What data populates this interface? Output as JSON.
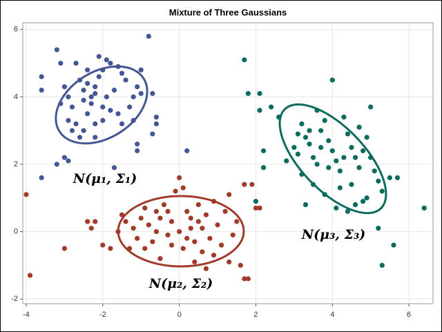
{
  "chart_data": {
    "type": "scatter",
    "title": "Mixture of Three Gaussians",
    "annotations": [
      "N(μ₁, Σ₁)",
      "N(μ₂, Σ₂)",
      "N(μ₃, Σ₃)"
    ],
    "xlim": [
      -4.09,
      6.63
    ],
    "ylim": [
      -2.14,
      6.2
    ],
    "xticks": [
      -4,
      -2,
      0,
      2,
      4,
      6
    ],
    "yticks": [
      -2,
      0,
      2,
      4,
      6
    ],
    "grid": true,
    "series": [
      {
        "color": "#445694",
        "x": [
          -3.6,
          -3.6,
          -3.6,
          -3.2,
          -3.1,
          -3.0,
          -2.9,
          -2.8,
          -2.9,
          -3.0,
          -3.2,
          -2.9,
          -2.6,
          -2.7,
          -2.5,
          -2.4,
          -2.3,
          -2.2,
          -2.1,
          -2.0,
          -2.1,
          -1.9,
          -1.8,
          -1.6,
          -1.5,
          -1.4,
          -1.7,
          -1.9,
          -2.0,
          -2.3,
          -2.5,
          -2.6,
          -2.4,
          -2.7,
          -2.5,
          -1.8,
          -1.6,
          -1.5,
          -1.3,
          -1.2,
          -1.1,
          -1.0,
          -0.7,
          -0.6,
          -0.6,
          -0.7,
          -1.1,
          -1.1,
          -0.8,
          -1.0,
          -2.2,
          -2.0,
          -1.7,
          -2.4,
          -2.2,
          -3.1,
          -2.8,
          -2.2,
          -1.2,
          0.2
        ],
        "values": [
          4.6,
          4.2,
          1.6,
          5.4,
          5.0,
          4.3,
          4.0,
          3.7,
          3.3,
          2.2,
          2.0,
          2.1,
          2.8,
          3.2,
          3.0,
          3.5,
          4.0,
          4.3,
          4.6,
          4.8,
          5.2,
          5.1,
          5.0,
          4.9,
          4.7,
          4.5,
          4.2,
          4.0,
          3.7,
          3.8,
          4.2,
          4.5,
          4.8,
          5.0,
          3.9,
          3.6,
          3.5,
          3.2,
          3.7,
          4.0,
          4.3,
          4.1,
          4.1,
          3.4,
          3.2,
          2.9,
          2.6,
          2.4,
          5.8,
          4.8,
          2.8,
          3.3,
          1.9,
          4.4,
          4.1,
          3.8,
          3.0,
          3.2,
          3.3,
          2.4
        ]
      },
      {
        "color": "#a23a2a",
        "x": [
          -4.0,
          -3.9,
          -3.0,
          -2.4,
          -2.2,
          -2.3,
          -2.0,
          -1.8,
          -1.6,
          -1.5,
          -1.4,
          -1.2,
          -1.1,
          -1.0,
          -0.9,
          -0.8,
          -0.7,
          -0.6,
          -0.5,
          -0.4,
          -0.3,
          -0.2,
          -0.1,
          0.0,
          0.1,
          0.2,
          0.3,
          0.4,
          0.5,
          0.6,
          0.7,
          0.8,
          0.9,
          1.0,
          1.1,
          1.2,
          1.3,
          1.4,
          1.5,
          1.6,
          1.7,
          1.8,
          1.7,
          1.9,
          2.1,
          2.0,
          -0.5,
          0.1,
          0.4,
          0.7,
          -0.2,
          0.2,
          -1.3,
          0.5,
          -0.6,
          0.3,
          -0.9,
          0.9,
          1.3,
          0.0,
          0.6,
          -0.3
        ],
        "values": [
          1.1,
          -1.3,
          -0.5,
          0.3,
          0.3,
          0.1,
          -0.4,
          -0.5,
          0.0,
          0.5,
          0.3,
          0.1,
          -0.2,
          0.4,
          0.7,
          0.2,
          -0.3,
          0.0,
          0.4,
          0.8,
          -0.1,
          0.3,
          1.2,
          1.6,
          1.3,
          0.6,
          0.1,
          -0.3,
          0.3,
          -0.6,
          0.5,
          -0.2,
          0.9,
          0.2,
          -0.4,
          0.6,
          1.1,
          -0.1,
          0.3,
          -1.0,
          -1.4,
          -1.4,
          1.4,
          1.4,
          0.7,
          0.7,
          -0.8,
          -0.5,
          -0.9,
          -1.1,
          -0.4,
          -0.2,
          -0.5,
          0.8,
          0.6,
          0.4,
          -0.5,
          -0.7,
          -0.9,
          0.0,
          0.1,
          0.6
        ]
      },
      {
        "color": "#0a6b5e",
        "x": [
          1.7,
          1.8,
          2.1,
          2.1,
          2.4,
          2.2,
          2.2,
          2.0,
          2.8,
          3.0,
          3.1,
          3.2,
          3.3,
          3.4,
          3.5,
          3.6,
          3.7,
          3.8,
          3.9,
          4.0,
          4.1,
          4.2,
          4.3,
          4.4,
          4.5,
          4.6,
          4.7,
          4.8,
          4.9,
          5.0,
          5.1,
          5.2,
          5.3,
          4.9,
          4.6,
          4.4,
          4.2,
          4.0,
          3.6,
          3.2,
          3.3,
          3.5,
          3.8,
          4.1,
          5.0,
          5.5,
          5.7,
          5.6,
          5.3,
          5.2,
          6.4,
          4.5,
          3.9,
          3.4,
          4.8,
          3.7,
          4.3,
          3.1,
          4.7,
          2.6
        ],
        "values": [
          5.1,
          4.1,
          4.1,
          3.6,
          3.7,
          2.4,
          1.9,
          0.9,
          2.1,
          2.5,
          2.9,
          3.2,
          2.8,
          2.6,
          2.2,
          2.0,
          3.0,
          3.3,
          2.7,
          2.4,
          2.1,
          1.8,
          3.4,
          2.9,
          2.5,
          2.2,
          1.9,
          2.4,
          2.8,
          2.2,
          1.8,
          1.5,
          1.2,
          1.0,
          0.8,
          0.6,
          1.3,
          4.5,
          3.6,
          1.7,
          0.8,
          1.4,
          1.1,
          0.7,
          3.7,
          1.6,
          1.6,
          -0.4,
          -1.0,
          0.1,
          0.7,
          1.4,
          1.9,
          3.0,
          0.9,
          2.5,
          2.2,
          2.3,
          3.1,
          3.4
        ]
      }
    ]
  }
}
